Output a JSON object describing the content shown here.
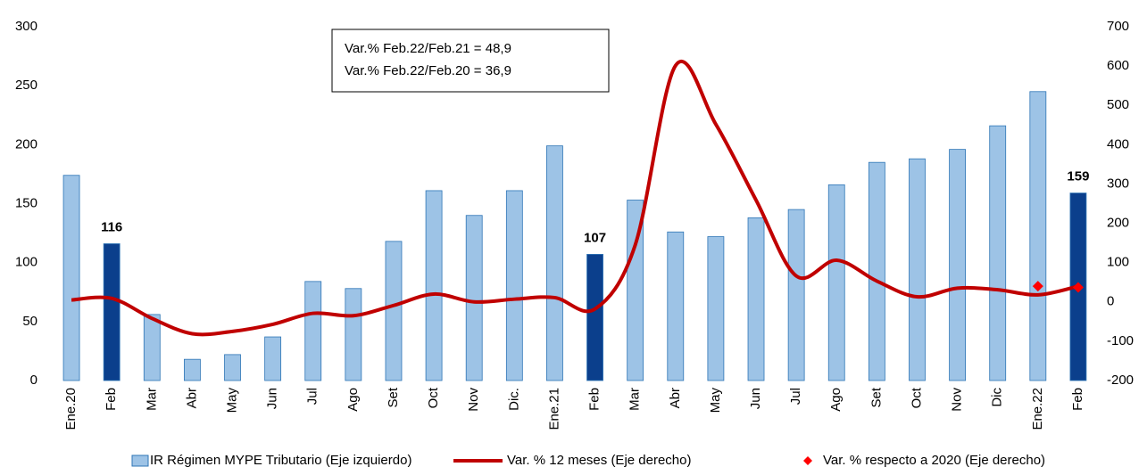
{
  "chart_data": {
    "type": "bar",
    "annotation": [
      "Var.% Feb.22/Feb.21 = 48,9",
      "Var.% Feb.22/Feb.20 = 36,9"
    ],
    "categories": [
      "Ene.20",
      "Feb",
      "Mar",
      "Abr",
      "May",
      "Jun",
      "Jul",
      "Ago",
      "Set",
      "Oct",
      "Nov",
      "Dic.",
      "Ene.21",
      "Feb",
      "Mar",
      "Abr",
      "May",
      "Jun",
      "Jul",
      "Ago",
      "Set",
      "Oct",
      "Nov",
      "Dic",
      "Ene.22",
      "Feb"
    ],
    "series": [
      {
        "name": "IR Régimen MYPE Tributario (Eje izquierdo)",
        "type": "bar",
        "axis": "y",
        "color": "#9dc3e6",
        "colors": [
          "#9dc3e6",
          "#0b3f8c",
          "#9dc3e6",
          "#9dc3e6",
          "#9dc3e6",
          "#9dc3e6",
          "#9dc3e6",
          "#9dc3e6",
          "#9dc3e6",
          "#9dc3e6",
          "#9dc3e6",
          "#9dc3e6",
          "#9dc3e6",
          "#0b3f8c",
          "#9dc3e6",
          "#9dc3e6",
          "#9dc3e6",
          "#9dc3e6",
          "#9dc3e6",
          "#9dc3e6",
          "#9dc3e6",
          "#9dc3e6",
          "#9dc3e6",
          "#9dc3e6",
          "#9dc3e6",
          "#0b3f8c"
        ],
        "values": [
          174,
          116,
          56,
          18,
          22,
          37,
          84,
          78,
          118,
          161,
          140,
          161,
          199,
          107,
          153,
          126,
          122,
          138,
          145,
          166,
          185,
          188,
          196,
          216,
          245,
          159
        ],
        "value_labels": [
          null,
          "116",
          null,
          null,
          null,
          null,
          null,
          null,
          null,
          null,
          null,
          null,
          null,
          "107",
          null,
          null,
          null,
          null,
          null,
          null,
          null,
          null,
          null,
          null,
          null,
          "159"
        ]
      },
      {
        "name": "Var. % 12 meses (Eje derecho)",
        "type": "line",
        "axis": "y2",
        "color": "#c00000",
        "values": [
          5,
          9,
          -42,
          -81,
          -75,
          -57,
          -29,
          -35,
          -9,
          20,
          0,
          7,
          11,
          -18,
          145,
          601,
          452,
          259,
          66,
          106,
          53,
          13,
          35,
          31,
          18,
          40
        ]
      },
      {
        "name": "Var. % respecto a 2020 (Eje derecho)",
        "type": "scatter",
        "axis": "y2",
        "color": "#ff0000",
        "values": [
          null,
          null,
          null,
          null,
          null,
          null,
          null,
          null,
          null,
          null,
          null,
          null,
          null,
          null,
          null,
          null,
          null,
          null,
          null,
          null,
          null,
          null,
          null,
          null,
          40,
          36.9
        ]
      }
    ],
    "ylim": [
      0,
      300
    ],
    "yticks": [
      0,
      50,
      100,
      150,
      200,
      250,
      300
    ],
    "y2lim": [
      -200,
      700
    ],
    "y2ticks": [
      -200,
      -100,
      0,
      100,
      200,
      300,
      400,
      500,
      600,
      700
    ]
  }
}
